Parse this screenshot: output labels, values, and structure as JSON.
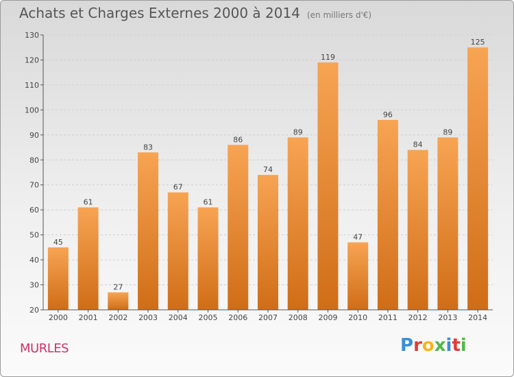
{
  "header": {
    "title": "Achats et Charges Externes 2000 à 2014",
    "unit": "(en milliers d'€)"
  },
  "footer": {
    "town": "MURLES",
    "logo_letters": [
      "P",
      "r",
      "o",
      "x",
      "i",
      "t",
      "i"
    ],
    "logo_colors": [
      "#3a8fd6",
      "#e23b3b",
      "#f3b523",
      "#54b848",
      "#3a8fd6",
      "#e23b3b",
      "#54b848"
    ]
  },
  "chart_data": {
    "type": "bar",
    "categories": [
      "2000",
      "2001",
      "2002",
      "2003",
      "2004",
      "2005",
      "2006",
      "2007",
      "2008",
      "2009",
      "2010",
      "2011",
      "2012",
      "2013",
      "2014"
    ],
    "values": [
      45,
      61,
      27,
      83,
      67,
      61,
      86,
      74,
      89,
      119,
      47,
      96,
      84,
      89,
      125
    ],
    "ylim": [
      20,
      130
    ],
    "yticks": [
      20,
      30,
      40,
      50,
      60,
      70,
      80,
      90,
      100,
      110,
      120,
      130
    ],
    "grid": true,
    "bar_color_top": "#f7a453",
    "bar_color_bottom": "#d06d17",
    "grid_color": "#cfcfcf"
  }
}
